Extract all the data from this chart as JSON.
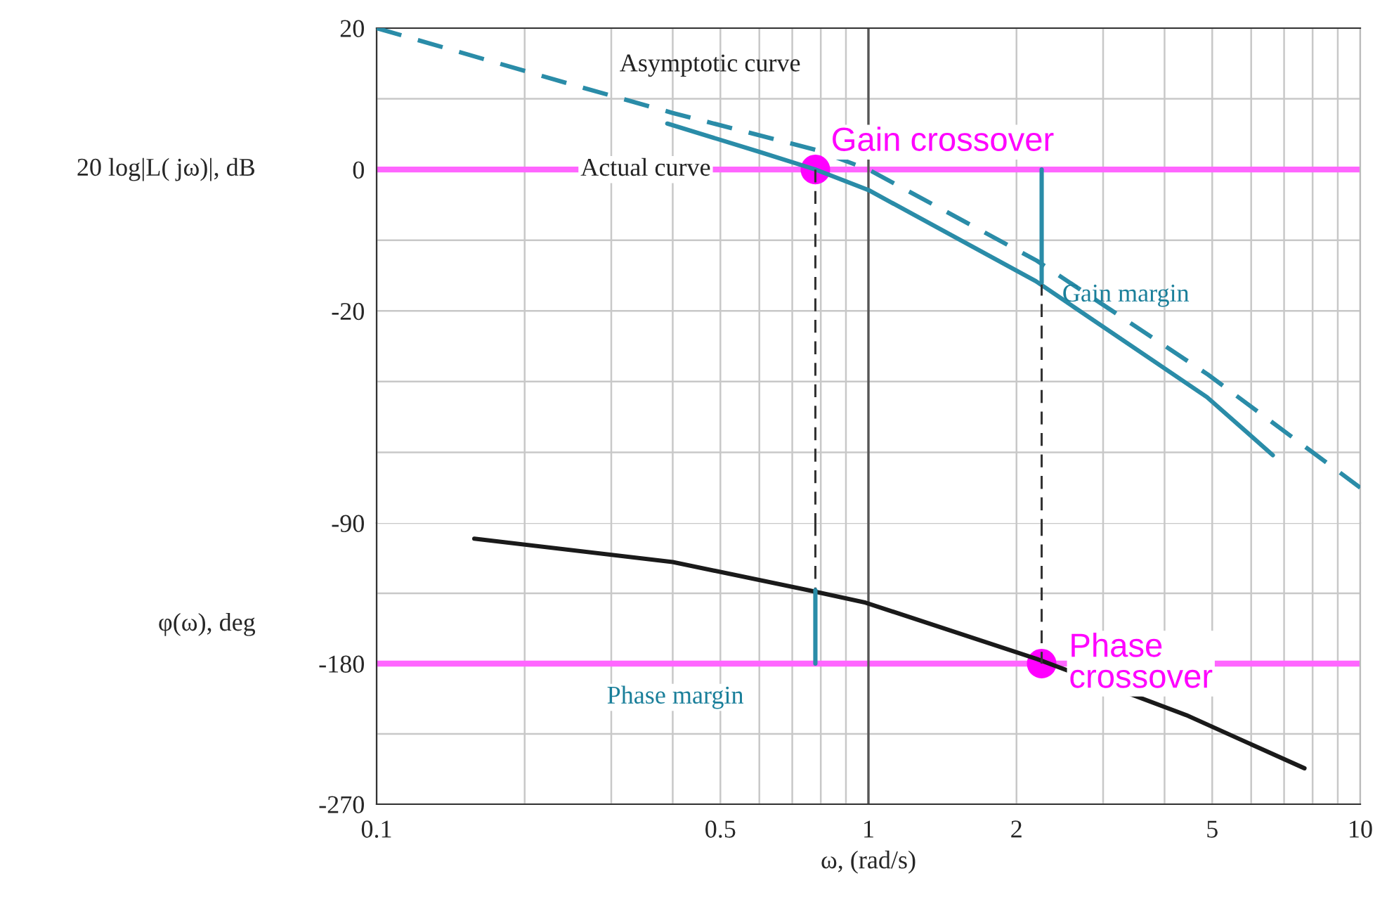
{
  "chart_data": [
    {
      "type": "line",
      "ylabel": "20 log|L( jω)|, dB",
      "xlim": [
        0.1,
        10
      ],
      "log": "x",
      "ylim": [
        -50,
        20
      ],
      "xticks": [
        0.1,
        {
          "value": 0.2,
          "label": null
        },
        {
          "value": 0.3,
          "label": null
        },
        {
          "value": 0.4,
          "label": null
        },
        0.5,
        {
          "value": 0.6,
          "label": null
        },
        {
          "value": 0.7,
          "label": null
        },
        {
          "value": 0.8,
          "label": null
        },
        {
          "value": 0.9,
          "label": null
        },
        1,
        2,
        {
          "value": 3,
          "label": null
        },
        {
          "value": 4,
          "label": null
        },
        5,
        {
          "value": 6,
          "label": null
        },
        {
          "value": 7,
          "label": null
        },
        {
          "value": 8,
          "label": null
        },
        {
          "value": 9,
          "label": null
        },
        10
      ],
      "yticks": [
        20,
        {
          "value": 10,
          "label": null
        },
        0,
        {
          "value": -10,
          "label": null
        },
        -20,
        {
          "value": -30,
          "label": null
        },
        {
          "value": -40,
          "label": null
        }
      ],
      "tick_labels": "y",
      "grid": true,
      "series": [
        {
          "type": "line",
          "color": "#2a8ca8",
          "line_style": "dashed",
          "x": [
            0.1,
            0.25,
            0.4,
            0.78,
            1,
            2.2,
            4.9,
            10
          ],
          "values": [
            20,
            12,
            8,
            2.8,
            0,
            -12.9,
            -29,
            -45
          ]
        },
        {
          "type": "line",
          "color": "#2a8ca8",
          "line_style": "solid",
          "x": [
            0.39,
            0.6,
            0.78,
            1,
            2.19,
            4.88,
            6.64
          ],
          "values": [
            6.5,
            2.5,
            0,
            -2.9,
            -15.8,
            -32.2,
            -40.4
          ]
        },
        {
          "type": "line",
          "color": "#333333",
          "line_style": "dashed",
          "x": [
            0.78,
            0.78
          ],
          "values": [
            0,
            -50
          ]
        },
        {
          "type": "line",
          "color": "#333333",
          "line_style": "dashed",
          "x": [
            2.25,
            2.25
          ],
          "values": [
            -16,
            -50
          ]
        },
        {
          "type": "line",
          "color": "#2a8ca8",
          "line_style": "solid",
          "x": [
            2.25,
            2.25
          ],
          "values": [
            0,
            -16
          ]
        },
        {
          "type": "scatter",
          "color": "#ff00ff",
          "marker": "circle",
          "x": [
            0.78
          ],
          "values": [
            0
          ]
        }
      ],
      "ref_lines": [
        {
          "axis": "y",
          "value": 0,
          "color": "#ff66ff"
        },
        {
          "axis": "x",
          "value": 1,
          "color": "#555555"
        }
      ],
      "annotations": [
        "Asymptotic curve",
        {
          "text": "Actual curve",
          "x": 0.255,
          "y": 0
        },
        {
          "text": "Gain crossover",
          "x": 0.78,
          "y": 0
        },
        "Gain margin"
      ]
    },
    {
      "type": "line",
      "ylabel": "φ(ω), deg",
      "xlabel": "ω, (rad/s)",
      "xlim": [
        0.1,
        10
      ],
      "log": "x",
      "ylim": [
        -270,
        -90
      ],
      "xticks": [
        0.1,
        {
          "value": 0.2,
          "label": null
        },
        {
          "value": 0.3,
          "label": null
        },
        {
          "value": 0.4,
          "label": null
        },
        0.5,
        {
          "value": 0.6,
          "label": null
        },
        {
          "value": 0.7,
          "label": null
        },
        {
          "value": 0.8,
          "label": null
        },
        {
          "value": 0.9,
          "label": null
        },
        1,
        2,
        {
          "value": 3,
          "label": null
        },
        {
          "value": 4,
          "label": null
        },
        5,
        {
          "value": 6,
          "label": null
        },
        {
          "value": 7,
          "label": null
        },
        {
          "value": 8,
          "label": null
        },
        {
          "value": 9,
          "label": null
        },
        10
      ],
      "yticks": [
        -90,
        {
          "value": -135,
          "label": null
        },
        -180,
        {
          "value": -225,
          "label": null
        },
        -270
      ],
      "grid": true,
      "series": [
        {
          "color": "#1a1a1a",
          "line_style": "solid",
          "x": [
            0.158,
            0.4,
            0.754,
            0.987,
            2.2,
            4.43,
            7.7
          ],
          "values": [
            -100,
            -115,
            -133,
            -141,
            -177,
            -213,
            -247
          ]
        },
        {
          "type": "line",
          "color": "#333333",
          "line_style": "dashed",
          "x": [
            0.78,
            0.78
          ],
          "values": [
            -90,
            -133
          ]
        },
        {
          "type": "line",
          "color": "#333333",
          "line_style": "dashed",
          "x": [
            2.25,
            2.25
          ],
          "values": [
            -90,
            -180
          ]
        },
        {
          "type": "line",
          "color": "#2a8ca8",
          "line_style": "solid",
          "x": [
            0.78,
            0.78
          ],
          "values": [
            -133,
            -180
          ]
        },
        {
          "type": "scatter",
          "color": "#ff00ff",
          "marker": "circle",
          "x": [
            2.25
          ],
          "values": [
            -180
          ]
        }
      ],
      "ref_lines": [
        {
          "axis": "y",
          "value": -180,
          "color": "#ff66ff"
        },
        {
          "axis": "x",
          "value": 1,
          "color": "#555555"
        }
      ],
      "annotations": [
        "Phase margin",
        {
          "text": "Phase\ncrossover",
          "x": 2.25,
          "y": -180
        }
      ]
    }
  ]
}
